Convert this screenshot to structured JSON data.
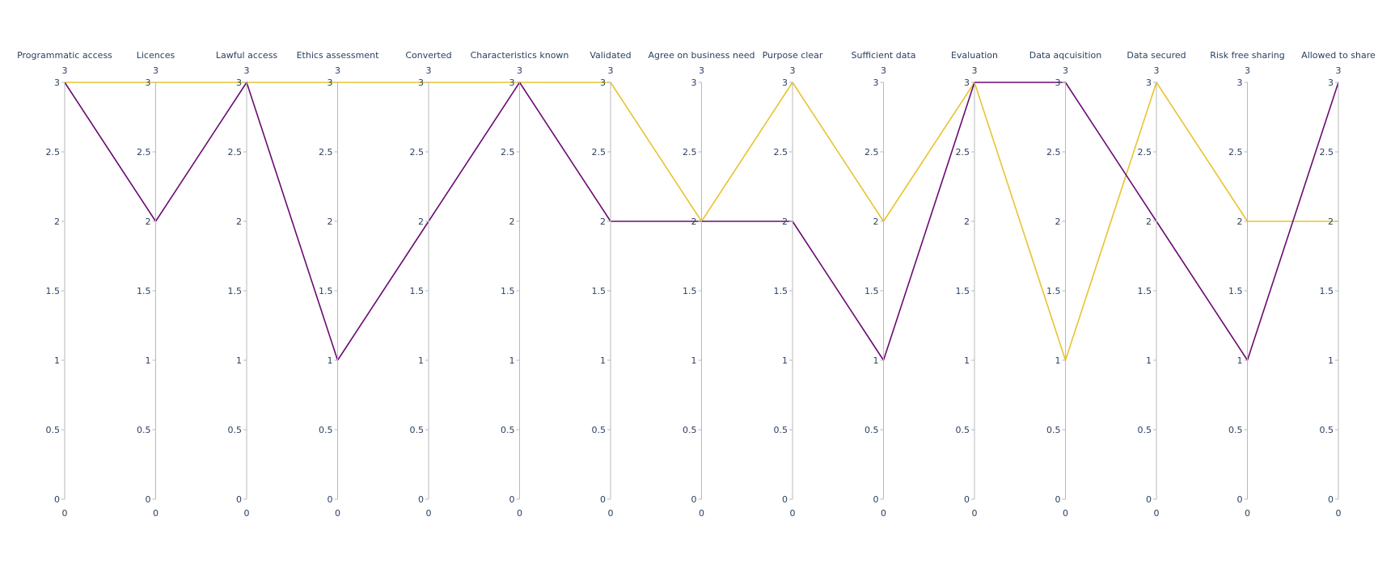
{
  "chart_data": {
    "type": "parallel_coordinates",
    "title": "",
    "dimensions": [
      {
        "label": "Programmatic access",
        "range": [
          0,
          3
        ]
      },
      {
        "label": "Licences",
        "range": [
          0,
          3
        ]
      },
      {
        "label": "Lawful access",
        "range": [
          0,
          3
        ]
      },
      {
        "label": "Ethics assessment",
        "range": [
          0,
          3
        ]
      },
      {
        "label": "Converted",
        "range": [
          0,
          3
        ]
      },
      {
        "label": "Characteristics known",
        "range": [
          0,
          3
        ]
      },
      {
        "label": "Validated",
        "range": [
          0,
          3
        ]
      },
      {
        "label": "Agree on business need",
        "range": [
          0,
          3
        ]
      },
      {
        "label": "Purpose clear",
        "range": [
          0,
          3
        ]
      },
      {
        "label": "Sufficient data",
        "range": [
          0,
          3
        ]
      },
      {
        "label": "Evaluation",
        "range": [
          0,
          3
        ]
      },
      {
        "label": "Data aqcuisition",
        "range": [
          0,
          3
        ]
      },
      {
        "label": "Data secured",
        "range": [
          0,
          3
        ]
      },
      {
        "label": "Risk free sharing",
        "range": [
          0,
          3
        ]
      },
      {
        "label": "Allowed to share",
        "range": [
          0,
          3
        ]
      }
    ],
    "ticks": [
      "0",
      "0.5",
      "1",
      "1.5",
      "2",
      "2.5",
      "3"
    ],
    "tick_values": [
      0,
      0.5,
      1,
      1.5,
      2,
      2.5,
      3
    ],
    "range_top_label": "3",
    "range_bottom_label": "0",
    "series": [
      {
        "color": "#e8c32e",
        "values": [
          3,
          3,
          3,
          3,
          3,
          3,
          3,
          2,
          3,
          2,
          3,
          1,
          3,
          2,
          2
        ]
      },
      {
        "color": "#6a0a73",
        "values": [
          3,
          2,
          3,
          1,
          2,
          3,
          2,
          2,
          2,
          1,
          3,
          3,
          2,
          1,
          3
        ]
      }
    ]
  }
}
